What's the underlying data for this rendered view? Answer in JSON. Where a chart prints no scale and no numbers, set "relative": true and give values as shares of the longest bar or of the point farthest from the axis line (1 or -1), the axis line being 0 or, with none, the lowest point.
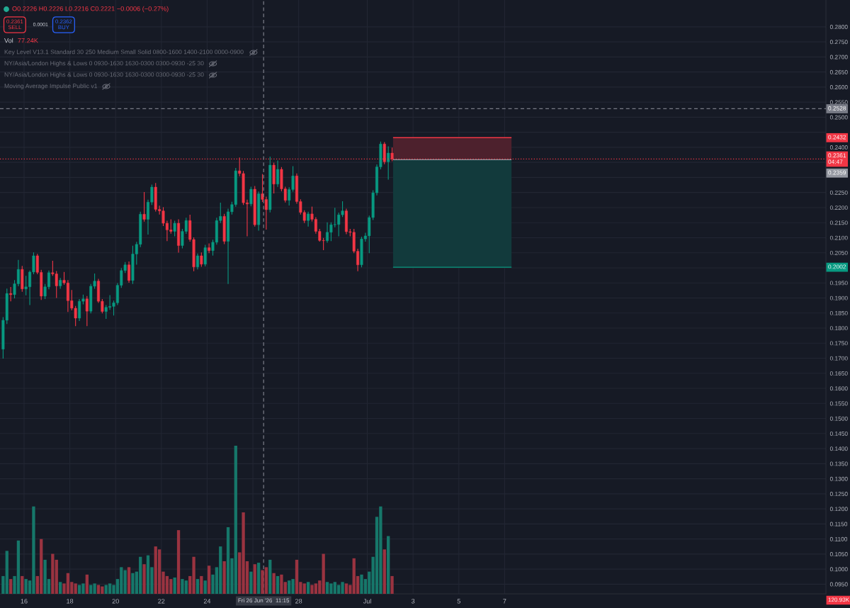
{
  "chart_data": [
    {
      "type": "candlestick",
      "subtitle": "O0.2226 H0.2226 L0.2216 C0.2221 −0.0006 (−0.27%)",
      "annotations": [
        "0.2361\nSELL",
        "0.0001",
        "0.2362\nBUY",
        "Key Level V13.1 Standard 30 250 Medium Small Solid 0800-1600 1400-2100 0000-0900",
        "NY/Asia/London Highs & Lows 0 0930-1630 1630-0300 0300-0930 -25 30",
        "NY/Asia/London Highs & Lows 0 0930-1630 1630-0300 0300-0930 -25 30",
        "Moving Average Impulse Public v1",
        "0.2432",
        "0.2359",
        "0.2002"
      ],
      "x": [
        "2026-06-15T02:00",
        "2026-06-15T06:00",
        "2026-06-15T10:00",
        "2026-06-15T14:00",
        "2026-06-15T18:00",
        "2026-06-15T22:00",
        "2026-06-16T02:00",
        "2026-06-16T06:00",
        "2026-06-16T10:00",
        "2026-06-16T14:00",
        "2026-06-16T18:00",
        "2026-06-16T22:00",
        "2026-06-17T02:00",
        "2026-06-17T06:00",
        "2026-06-17T10:00",
        "2026-06-17T14:00",
        "2026-06-17T18:00",
        "2026-06-17T22:00",
        "2026-06-18T02:00",
        "2026-06-18T06:00",
        "2026-06-18T10:00",
        "2026-06-18T14:00",
        "2026-06-18T18:00",
        "2026-06-18T22:00",
        "2026-06-19T02:00",
        "2026-06-19T06:00",
        "2026-06-19T10:00",
        "2026-06-19T14:00",
        "2026-06-19T18:00",
        "2026-06-19T22:00",
        "2026-06-20T02:00",
        "2026-06-20T06:00",
        "2026-06-20T10:00",
        "2026-06-20T14:00",
        "2026-06-20T18:00",
        "2026-06-20T22:00",
        "2026-06-21T02:00",
        "2026-06-21T06:00",
        "2026-06-21T10:00",
        "2026-06-21T14:00",
        "2026-06-21T18:00",
        "2026-06-21T22:00",
        "2026-06-22T02:00",
        "2026-06-22T06:00",
        "2026-06-22T10:00",
        "2026-06-22T14:00",
        "2026-06-22T18:00",
        "2026-06-22T22:00",
        "2026-06-23T02:00",
        "2026-06-23T06:00",
        "2026-06-23T10:00",
        "2026-06-23T14:00",
        "2026-06-23T18:00",
        "2026-06-23T22:00",
        "2026-06-24T02:00",
        "2026-06-24T06:00",
        "2026-06-24T10:00",
        "2026-06-24T14:00",
        "2026-06-24T18:00",
        "2026-06-24T22:00",
        "2026-06-25T02:00",
        "2026-06-25T06:00",
        "2026-06-25T10:00",
        "2026-06-25T14:00",
        "2026-06-25T18:00",
        "2026-06-25T22:00",
        "2026-06-26T02:00",
        "2026-06-26T06:00",
        "2026-06-26T10:00",
        "2026-06-26T14:00",
        "2026-06-26T18:00",
        "2026-06-26T22:00",
        "2026-06-27T02:00",
        "2026-06-27T06:00",
        "2026-06-27T10:00",
        "2026-06-27T14:00",
        "2026-06-27T18:00",
        "2026-06-27T22:00",
        "2026-06-28T02:00",
        "2026-06-28T06:00",
        "2026-06-28T10:00",
        "2026-06-28T14:00",
        "2026-06-28T18:00",
        "2026-06-28T22:00",
        "2026-06-29T02:00",
        "2026-06-29T06:00",
        "2026-06-29T10:00",
        "2026-06-29T14:00",
        "2026-06-29T18:00",
        "2026-06-29T22:00",
        "2026-06-30T02:00",
        "2026-06-30T06:00",
        "2026-06-30T10:00",
        "2026-06-30T14:00",
        "2026-06-30T18:00",
        "2026-06-30T22:00",
        "2026-07-01T02:00",
        "2026-07-01T06:00",
        "2026-07-01T10:00",
        "2026-07-01T14:00",
        "2026-07-01T18:00",
        "2026-07-01T22:00",
        "2026-07-02T02:00"
      ],
      "ohlc": [
        [
          0.173,
          0.1835,
          0.17,
          0.1826
        ],
        [
          0.1826,
          0.193,
          0.1815,
          0.1915
        ],
        [
          0.1915,
          0.1935,
          0.189,
          0.1911
        ],
        [
          0.1911,
          0.1958,
          0.19,
          0.1947
        ],
        [
          0.1947,
          0.2025,
          0.194,
          0.1995
        ],
        [
          0.1995,
          0.2005,
          0.1922,
          0.193
        ],
        [
          0.193,
          0.1972,
          0.191,
          0.1937
        ],
        [
          0.1937,
          0.199,
          0.1878,
          0.1986
        ],
        [
          0.1986,
          0.205,
          0.198,
          0.204
        ],
        [
          0.204,
          0.2045,
          0.198,
          0.1985
        ],
        [
          0.1985,
          0.1992,
          0.1895,
          0.1906
        ],
        [
          0.1906,
          0.1945,
          0.1898,
          0.1937
        ],
        [
          0.1937,
          0.199,
          0.193,
          0.1984
        ],
        [
          0.1984,
          0.2022,
          0.1975,
          0.198
        ],
        [
          0.198,
          0.1988,
          0.1901,
          0.194
        ],
        [
          0.194,
          0.1965,
          0.1932,
          0.1959
        ],
        [
          0.1959,
          0.1985,
          0.1945,
          0.195
        ],
        [
          0.195,
          0.1958,
          0.1855,
          0.1891
        ],
        [
          0.1891,
          0.1925,
          0.186,
          0.1866
        ],
        [
          0.1866,
          0.1872,
          0.1808,
          0.1833
        ],
        [
          0.1833,
          0.1895,
          0.1825,
          0.1889
        ],
        [
          0.1889,
          0.191,
          0.188,
          0.1897
        ],
        [
          0.1897,
          0.1905,
          0.1808,
          0.1856
        ],
        [
          0.1856,
          0.1945,
          0.185,
          0.1939
        ],
        [
          0.1939,
          0.198,
          0.1932,
          0.1956
        ],
        [
          0.1956,
          0.1962,
          0.1885,
          0.1889
        ],
        [
          0.1889,
          0.1895,
          0.185,
          0.1855
        ],
        [
          0.1855,
          0.1875,
          0.1832,
          0.1869
        ],
        [
          0.1869,
          0.1908,
          0.1862,
          0.1872
        ],
        [
          0.1872,
          0.189,
          0.1843,
          0.1884
        ],
        [
          0.1884,
          0.1948,
          0.1878,
          0.1942
        ],
        [
          0.1942,
          0.1998,
          0.1935,
          0.1991
        ],
        [
          0.1991,
          0.2018,
          0.1984,
          0.201
        ],
        [
          0.201,
          0.202,
          0.1952,
          0.1958
        ],
        [
          0.1958,
          0.2072,
          0.1948,
          0.2046
        ],
        [
          0.2046,
          0.2085,
          0.2012,
          0.2078
        ],
        [
          0.2078,
          0.2185,
          0.207,
          0.2178
        ],
        [
          0.2178,
          0.225,
          0.2155,
          0.2161
        ],
        [
          0.2161,
          0.2225,
          0.2112,
          0.2218
        ],
        [
          0.2218,
          0.2275,
          0.221,
          0.2268
        ],
        [
          0.2268,
          0.228,
          0.2188,
          0.2194
        ],
        [
          0.2194,
          0.2205,
          0.2178,
          0.2189
        ],
        [
          0.2189,
          0.22,
          0.214,
          0.2148
        ],
        [
          0.2148,
          0.2155,
          0.209,
          0.2126
        ],
        [
          0.2126,
          0.216,
          0.2115,
          0.2121
        ],
        [
          0.2121,
          0.2155,
          0.2106,
          0.2148
        ],
        [
          0.2148,
          0.216,
          0.2052,
          0.2074
        ],
        [
          0.2074,
          0.2128,
          0.2066,
          0.2121
        ],
        [
          0.2121,
          0.2165,
          0.2114,
          0.2157
        ],
        [
          0.2157,
          0.2175,
          0.2088,
          0.2094
        ],
        [
          0.2094,
          0.21,
          0.199,
          0.2003
        ],
        [
          0.2003,
          0.2046,
          0.1996,
          0.204
        ],
        [
          0.204,
          0.205,
          0.2005,
          0.2012
        ],
        [
          0.2012,
          0.2075,
          0.2006,
          0.2067
        ],
        [
          0.2067,
          0.208,
          0.205,
          0.2057
        ],
        [
          0.2057,
          0.2092,
          0.2042,
          0.2085
        ],
        [
          0.2085,
          0.2165,
          0.2078,
          0.2157
        ],
        [
          0.2157,
          0.2215,
          0.215,
          0.2171
        ],
        [
          0.2171,
          0.2178,
          0.208,
          0.2088
        ],
        [
          0.2088,
          0.2195,
          0.1948,
          0.2186
        ],
        [
          0.2186,
          0.2218,
          0.2178,
          0.221
        ],
        [
          0.221,
          0.233,
          0.2204,
          0.2322
        ],
        [
          0.2322,
          0.2365,
          0.2305,
          0.2313
        ],
        [
          0.2313,
          0.232,
          0.221,
          0.2216
        ],
        [
          0.2216,
          0.2225,
          0.2106,
          0.2212
        ],
        [
          0.2212,
          0.2268,
          0.2205,
          0.2261
        ],
        [
          0.2261,
          0.227,
          0.2138,
          0.2143
        ],
        [
          0.2143,
          0.2252,
          0.2125,
          0.2246
        ],
        [
          0.2246,
          0.231,
          0.222,
          0.2227
        ],
        [
          0.2227,
          0.2235,
          0.2128,
          0.2193
        ],
        [
          0.2193,
          0.2368,
          0.2185,
          0.2341
        ],
        [
          0.2341,
          0.2348,
          0.2248,
          0.2278
        ],
        [
          0.2278,
          0.2355,
          0.227,
          0.2327
        ],
        [
          0.2327,
          0.2333,
          0.2255,
          0.2262
        ],
        [
          0.2262,
          0.2268,
          0.2218,
          0.2224
        ],
        [
          0.2224,
          0.2266,
          0.2208,
          0.226
        ],
        [
          0.226,
          0.2336,
          0.2254,
          0.2305
        ],
        [
          0.2305,
          0.2312,
          0.2214,
          0.222
        ],
        [
          0.222,
          0.2226,
          0.2178,
          0.2184
        ],
        [
          0.2184,
          0.219,
          0.215,
          0.2157
        ],
        [
          0.2157,
          0.2185,
          0.2138,
          0.2179
        ],
        [
          0.2179,
          0.2202,
          0.2155,
          0.2161
        ],
        [
          0.2161,
          0.2167,
          0.2115,
          0.2121
        ],
        [
          0.2121,
          0.2128,
          0.2088,
          0.2091
        ],
        [
          0.2091,
          0.2098,
          0.206,
          0.209
        ],
        [
          0.209,
          0.215,
          0.2085,
          0.2118
        ],
        [
          0.2118,
          0.215,
          0.209,
          0.2143
        ],
        [
          0.2143,
          0.2198,
          0.2136,
          0.2144
        ],
        [
          0.2144,
          0.2182,
          0.2106,
          0.2176
        ],
        [
          0.2176,
          0.222,
          0.217,
          0.2189
        ],
        [
          0.2189,
          0.2195,
          0.2113,
          0.212
        ],
        [
          0.212,
          0.2128,
          0.2106,
          0.2118
        ],
        [
          0.2118,
          0.2128,
          0.205,
          0.2055
        ],
        [
          0.2055,
          0.2062,
          0.199,
          0.201
        ],
        [
          0.201,
          0.2102,
          0.2003,
          0.2096
        ],
        [
          0.2096,
          0.2115,
          0.2088,
          0.2106
        ],
        [
          0.2106,
          0.2172,
          0.205,
          0.2167
        ],
        [
          0.2167,
          0.2256,
          0.216,
          0.2249
        ],
        [
          0.2249,
          0.2342,
          0.2242,
          0.2335
        ],
        [
          0.2335,
          0.2418,
          0.2328,
          0.2411
        ],
        [
          0.2411,
          0.2416,
          0.2345,
          0.2352
        ],
        [
          0.2352,
          0.2402,
          0.2294,
          0.2381
        ],
        [
          0.2381,
          0.2398,
          0.2355,
          0.2361
        ]
      ],
      "colors": [
        "#089981",
        "#089981",
        "#f23645",
        "#089981",
        "#089981",
        "#f23645",
        "#089981",
        "#089981",
        "#089981",
        "#f23645",
        "#f23645",
        "#089981",
        "#089981",
        "#f23645",
        "#f23645",
        "#089981",
        "#f23645",
        "#f23645",
        "#f23645",
        "#f23645",
        "#089981",
        "#089981",
        "#f23645",
        "#089981",
        "#089981",
        "#f23645",
        "#f23645",
        "#089981",
        "#089981",
        "#089981",
        "#089981",
        "#089981",
        "#089981",
        "#f23645",
        "#089981",
        "#089981",
        "#089981",
        "#f23645",
        "#089981",
        "#089981",
        "#f23645",
        "#f23645",
        "#f23645",
        "#f23645",
        "#f23645",
        "#089981",
        "#f23645",
        "#089981",
        "#089981",
        "#f23645",
        "#f23645",
        "#089981",
        "#f23645",
        "#089981",
        "#f23645",
        "#089981",
        "#089981",
        "#089981",
        "#f23645",
        "#089981",
        "#089981",
        "#089981",
        "#f23645",
        "#f23645",
        "#f23645",
        "#089981",
        "#f23645",
        "#089981",
        "#f23645",
        "#f23645",
        "#089981",
        "#f23645",
        "#089981",
        "#f23645",
        "#f23645",
        "#089981",
        "#089981",
        "#f23645",
        "#f23645",
        "#f23645",
        "#089981",
        "#f23645",
        "#f23645",
        "#f23645",
        "#f23645",
        "#089981",
        "#089981",
        "#089981",
        "#089981",
        "#089981",
        "#f23645",
        "#f23645",
        "#f23645",
        "#f23645",
        "#089981",
        "#089981",
        "#089981",
        "#089981",
        "#089981",
        "#089981",
        "#f23645",
        "#089981",
        "#f23645"
      ],
      "series": [
        {
          "type": "line",
          "x": [
            "2026-07-02T03:00",
            "2026-07-07T07:15"
          ],
          "values": [
            0.2432,
            0.2432
          ],
          "lower": [
            0.2359,
            0.2359
          ],
          "upper": [
            0.2432,
            0.2432
          ],
          "color": "#f23645"
        },
        {
          "type": "line",
          "x": [
            "2026-07-02T03:00",
            "2026-07-07T07:15"
          ],
          "values": [
            0.2002,
            0.2002
          ],
          "lower": [
            0.2002,
            0.2002
          ],
          "upper": [
            0.2359,
            0.2359
          ],
          "color": "#089981"
        },
        {
          "type": "line",
          "x": [
            "2026-07-02T03:00",
            "2026-07-07T07:15"
          ],
          "values": [
            0.2359,
            0.2359
          ],
          "color": "#9598a1"
        }
      ],
      "ref_lines": [
        {
          "axis": "y",
          "value": 0.2528,
          "label": "0.2528",
          "color": "#787b86",
          "line_style": "dashed"
        },
        {
          "axis": "y",
          "value": 0.2361,
          "label": "0.2361\n04:47",
          "color": "#f23645",
          "line_style": "dotted"
        },
        {
          "axis": "x",
          "value": "2026-06-26T11:15",
          "label": "Fri 26 Jun '26  11:15",
          "color": "#787b86",
          "line_style": "dashed"
        }
      ],
      "xlim": [
        "2026-06-14T22:45",
        "2026-07-21T01:00"
      ],
      "xticks": [
        {
          "value": "2026-06-16",
          "label": "16"
        },
        {
          "value": "2026-06-18",
          "label": "18"
        },
        {
          "value": "2026-06-20",
          "label": "20"
        },
        {
          "value": "2026-06-22",
          "label": "22"
        },
        {
          "value": "2026-06-24",
          "label": "24"
        },
        {
          "value": "2026-06-26",
          "label": null
        },
        {
          "value": "2026-06-28",
          "label": "28"
        },
        {
          "value": "2026-07-01",
          "label": "Jul"
        },
        {
          "value": "2026-07-03",
          "label": "3"
        },
        {
          "value": "2026-07-05",
          "label": "5"
        },
        {
          "value": "2026-07-07",
          "label": "7"
        }
      ],
      "ylim": [
        0.0918,
        0.2889
      ],
      "yticks": [
        {
          "value": 0.095,
          "label": "0.0950"
        },
        {
          "value": 0.1,
          "label": "0.1000"
        },
        {
          "value": 0.105,
          "label": "0.1050"
        },
        {
          "value": 0.11,
          "label": "0.1100"
        },
        {
          "value": 0.115,
          "label": "0.1150"
        },
        {
          "value": 0.12,
          "label": "0.1200"
        },
        {
          "value": 0.125,
          "label": "0.1250"
        },
        {
          "value": 0.13,
          "label": "0.1300"
        },
        {
          "value": 0.135,
          "label": "0.1350"
        },
        {
          "value": 0.14,
          "label": "0.1400"
        },
        {
          "value": 0.145,
          "label": "0.1450"
        },
        {
          "value": 0.15,
          "label": "0.1500"
        },
        {
          "value": 0.155,
          "label": "0.1550"
        },
        {
          "value": 0.16,
          "label": "0.1600"
        },
        {
          "value": 0.165,
          "label": "0.1650"
        },
        {
          "value": 0.17,
          "label": "0.1700"
        },
        {
          "value": 0.175,
          "label": "0.1750"
        },
        {
          "value": 0.18,
          "label": "0.1800"
        },
        {
          "value": 0.185,
          "label": "0.1850"
        },
        {
          "value": 0.19,
          "label": "0.1900"
        },
        {
          "value": 0.195,
          "label": "0.1950"
        },
        {
          "value": 0.2,
          "label": null
        },
        {
          "value": 0.205,
          "label": "0.2050"
        },
        {
          "value": 0.21,
          "label": "0.2100"
        },
        {
          "value": 0.215,
          "label": "0.2150"
        },
        {
          "value": 0.22,
          "label": "0.2200"
        },
        {
          "value": 0.225,
          "label": "0.2250"
        },
        {
          "value": 0.23,
          "label": null
        },
        {
          "value": 0.235,
          "label": null
        },
        {
          "value": 0.24,
          "label": "0.2400"
        },
        {
          "value": 0.245,
          "label": null
        },
        {
          "value": 0.25,
          "label": "0.2500"
        },
        {
          "value": 0.255,
          "label": "0.2550"
        },
        {
          "value": 0.26,
          "label": "0.2600"
        },
        {
          "value": 0.265,
          "label": "0.2650"
        },
        {
          "value": 0.27,
          "label": "0.2700"
        },
        {
          "value": 0.275,
          "label": "0.2750"
        },
        {
          "value": 0.28,
          "label": "0.2800"
        }
      ],
      "grid": true
    },
    {
      "type": "bar",
      "title": "Vol",
      "relative": true,
      "tick_labels": false,
      "annotations": [
        "77.24K",
        "120.93K"
      ],
      "x": [
        "2026-06-15T02:00",
        "2026-06-15T06:00",
        "2026-06-15T10:00",
        "2026-06-15T14:00",
        "2026-06-15T18:00",
        "2026-06-15T22:00",
        "2026-06-16T02:00",
        "2026-06-16T06:00",
        "2026-06-16T10:00",
        "2026-06-16T14:00",
        "2026-06-16T18:00",
        "2026-06-16T22:00",
        "2026-06-17T02:00",
        "2026-06-17T06:00",
        "2026-06-17T10:00",
        "2026-06-17T14:00",
        "2026-06-17T18:00",
        "2026-06-17T22:00",
        "2026-06-18T02:00",
        "2026-06-18T06:00",
        "2026-06-18T10:00",
        "2026-06-18T14:00",
        "2026-06-18T18:00",
        "2026-06-18T22:00",
        "2026-06-19T02:00",
        "2026-06-19T06:00",
        "2026-06-19T10:00",
        "2026-06-19T14:00",
        "2026-06-19T18:00",
        "2026-06-19T22:00",
        "2026-06-20T02:00",
        "2026-06-20T06:00",
        "2026-06-20T10:00",
        "2026-06-20T14:00",
        "2026-06-20T18:00",
        "2026-06-20T22:00",
        "2026-06-21T02:00",
        "2026-06-21T06:00",
        "2026-06-21T10:00",
        "2026-06-21T14:00",
        "2026-06-21T18:00",
        "2026-06-21T22:00",
        "2026-06-22T02:00",
        "2026-06-22T06:00",
        "2026-06-22T10:00",
        "2026-06-22T14:00",
        "2026-06-22T18:00",
        "2026-06-22T22:00",
        "2026-06-23T02:00",
        "2026-06-23T06:00",
        "2026-06-23T10:00",
        "2026-06-23T14:00",
        "2026-06-23T18:00",
        "2026-06-23T22:00",
        "2026-06-24T02:00",
        "2026-06-24T06:00",
        "2026-06-24T10:00",
        "2026-06-24T14:00",
        "2026-06-24T18:00",
        "2026-06-24T22:00",
        "2026-06-25T02:00",
        "2026-06-25T06:00",
        "2026-06-25T10:00",
        "2026-06-25T14:00",
        "2026-06-25T18:00",
        "2026-06-25T22:00",
        "2026-06-26T02:00",
        "2026-06-26T06:00",
        "2026-06-26T10:00",
        "2026-06-26T14:00",
        "2026-06-26T18:00",
        "2026-06-26T22:00",
        "2026-06-27T02:00",
        "2026-06-27T06:00",
        "2026-06-27T10:00",
        "2026-06-27T14:00",
        "2026-06-27T18:00",
        "2026-06-27T22:00",
        "2026-06-28T02:00",
        "2026-06-28T06:00",
        "2026-06-28T10:00",
        "2026-06-28T14:00",
        "2026-06-28T18:00",
        "2026-06-28T22:00",
        "2026-06-29T02:00",
        "2026-06-29T06:00",
        "2026-06-29T10:00",
        "2026-06-29T14:00",
        "2026-06-29T18:00",
        "2026-06-29T22:00",
        "2026-06-30T02:00",
        "2026-06-30T06:00",
        "2026-06-30T10:00",
        "2026-06-30T14:00",
        "2026-06-30T18:00",
        "2026-06-30T22:00",
        "2026-07-01T02:00",
        "2026-07-01T06:00",
        "2026-07-01T10:00",
        "2026-07-01T14:00",
        "2026-07-01T18:00",
        "2026-07-01T22:00",
        "2026-07-02T02:00"
      ],
      "values": [
        0.12,
        0.29,
        0.1,
        0.12,
        0.36,
        0.12,
        0.1,
        0.09,
        0.59,
        0.12,
        0.37,
        0.23,
        0.1,
        0.27,
        0.23,
        0.08,
        0.07,
        0.14,
        0.08,
        0.07,
        0.06,
        0.07,
        0.13,
        0.06,
        0.07,
        0.06,
        0.05,
        0.06,
        0.07,
        0.06,
        0.1,
        0.18,
        0.16,
        0.18,
        0.14,
        0.15,
        0.25,
        0.2,
        0.26,
        0.18,
        0.32,
        0.3,
        0.15,
        0.12,
        0.1,
        0.11,
        0.43,
        0.1,
        0.09,
        0.12,
        0.25,
        0.1,
        0.12,
        0.09,
        0.19,
        0.13,
        0.18,
        0.32,
        0.22,
        0.45,
        0.24,
        1.0,
        0.28,
        0.55,
        0.22,
        0.15,
        0.2,
        0.21,
        0.16,
        0.18,
        0.23,
        0.14,
        0.12,
        0.13,
        0.08,
        0.09,
        0.1,
        0.23,
        0.08,
        0.07,
        0.08,
        0.06,
        0.07,
        0.09,
        0.27,
        0.08,
        0.07,
        0.08,
        0.06,
        0.08,
        0.07,
        0.06,
        0.24,
        0.12,
        0.13,
        0.1,
        0.15,
        0.25,
        0.52,
        0.59,
        0.3,
        0.39,
        0.12
      ],
      "colors": [
        "#16776a",
        "#16776a",
        "#9a3340",
        "#16776a",
        "#16776a",
        "#9a3340",
        "#16776a",
        "#16776a",
        "#16776a",
        "#9a3340",
        "#9a3340",
        "#16776a",
        "#16776a",
        "#9a3340",
        "#9a3340",
        "#16776a",
        "#9a3340",
        "#9a3340",
        "#9a3340",
        "#9a3340",
        "#16776a",
        "#16776a",
        "#9a3340",
        "#16776a",
        "#16776a",
        "#9a3340",
        "#9a3340",
        "#16776a",
        "#16776a",
        "#16776a",
        "#16776a",
        "#16776a",
        "#16776a",
        "#9a3340",
        "#16776a",
        "#16776a",
        "#16776a",
        "#9a3340",
        "#16776a",
        "#16776a",
        "#9a3340",
        "#9a3340",
        "#9a3340",
        "#9a3340",
        "#9a3340",
        "#16776a",
        "#9a3340",
        "#16776a",
        "#16776a",
        "#9a3340",
        "#9a3340",
        "#16776a",
        "#9a3340",
        "#16776a",
        "#9a3340",
        "#16776a",
        "#16776a",
        "#16776a",
        "#9a3340",
        "#16776a",
        "#16776a",
        "#16776a",
        "#9a3340",
        "#9a3340",
        "#9a3340",
        "#16776a",
        "#9a3340",
        "#16776a",
        "#9a3340",
        "#9a3340",
        "#16776a",
        "#9a3340",
        "#16776a",
        "#9a3340",
        "#9a3340",
        "#16776a",
        "#16776a",
        "#9a3340",
        "#9a3340",
        "#9a3340",
        "#16776a",
        "#9a3340",
        "#9a3340",
        "#9a3340",
        "#9a3340",
        "#16776a",
        "#16776a",
        "#16776a",
        "#16776a",
        "#16776a",
        "#9a3340",
        "#9a3340",
        "#9a3340",
        "#9a3340",
        "#16776a",
        "#16776a",
        "#16776a",
        "#16776a",
        "#16776a",
        "#16776a",
        "#9a3340",
        "#16776a",
        "#9a3340"
      ],
      "xlim": [
        "2026-06-14T22:45",
        "2026-07-21T01:00"
      ]
    }
  ]
}
